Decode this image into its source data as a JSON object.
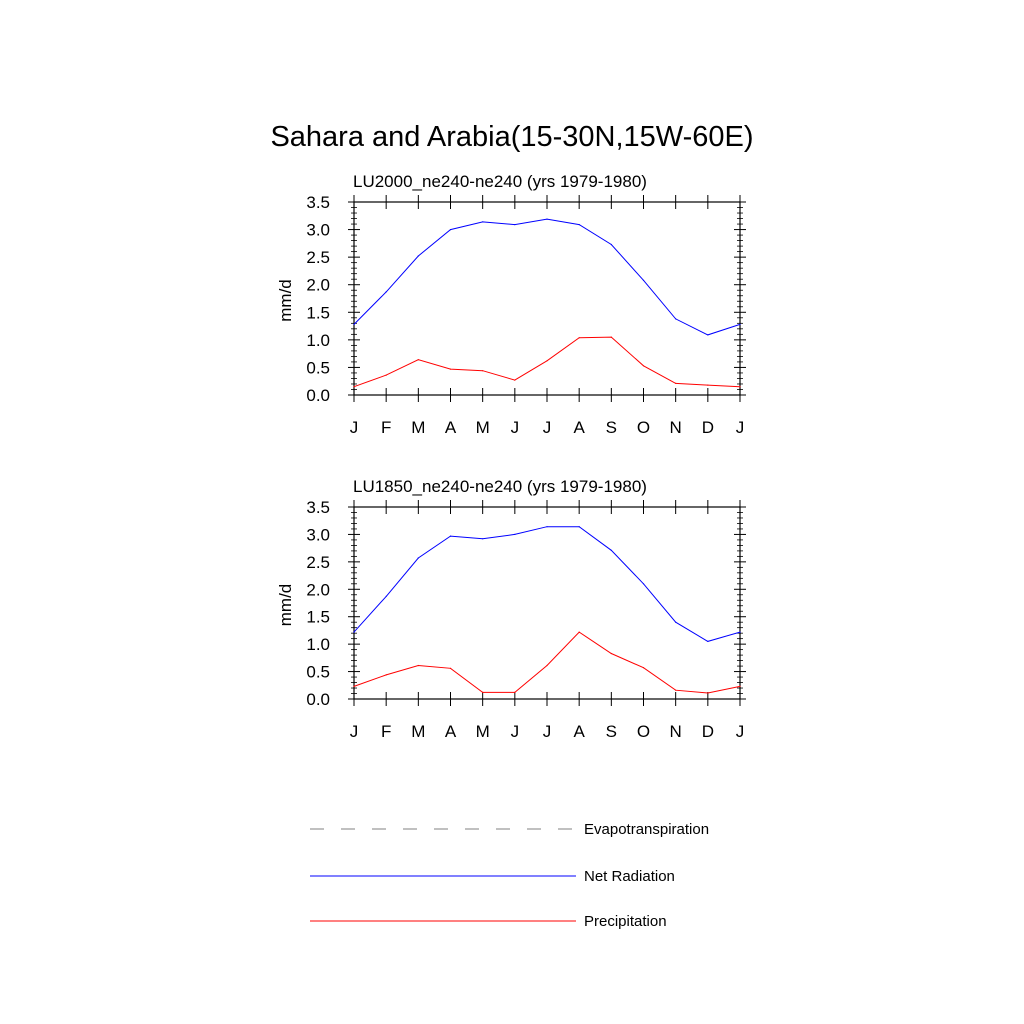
{
  "title": "Sahara and Arabia(15-30N,15W-60E)",
  "month_labels": [
    "J",
    "F",
    "M",
    "A",
    "M",
    "J",
    "J",
    "A",
    "S",
    "O",
    "N",
    "D",
    "J"
  ],
  "chart_data": [
    {
      "type": "line",
      "title": "LU2000_ne240-ne240 (yrs 1979-1980)",
      "ylabel": "mm/d",
      "xlabel": "",
      "categories": [
        "J",
        "F",
        "M",
        "A",
        "M",
        "J",
        "J",
        "A",
        "S",
        "O",
        "N",
        "D",
        "J"
      ],
      "ylim": [
        0.0,
        3.5
      ],
      "yticks": [
        "0.0",
        "0.5",
        "1.0",
        "1.5",
        "2.0",
        "2.5",
        "3.0",
        "3.5"
      ],
      "series": [
        {
          "name": "Net Radiation",
          "color": "#0000ff",
          "style": "solid",
          "values": [
            1.28,
            1.87,
            2.52,
            3.0,
            3.14,
            3.09,
            3.19,
            3.09,
            2.73,
            2.08,
            1.38,
            1.09,
            1.28
          ]
        },
        {
          "name": "Precipitation",
          "color": "#ff0000",
          "style": "solid",
          "values": [
            0.15,
            0.36,
            0.64,
            0.47,
            0.44,
            0.27,
            0.62,
            1.04,
            1.05,
            0.53,
            0.21,
            0.18,
            0.15
          ]
        }
      ]
    },
    {
      "type": "line",
      "title": "LU1850_ne240-ne240 (yrs 1979-1980)",
      "ylabel": "mm/d",
      "xlabel": "",
      "categories": [
        "J",
        "F",
        "M",
        "A",
        "M",
        "J",
        "J",
        "A",
        "S",
        "O",
        "N",
        "D",
        "J"
      ],
      "ylim": [
        0.0,
        3.5
      ],
      "yticks": [
        "0.0",
        "0.5",
        "1.0",
        "1.5",
        "2.0",
        "2.5",
        "3.0",
        "3.5"
      ],
      "series": [
        {
          "name": "Net Radiation",
          "color": "#0000ff",
          "style": "solid",
          "values": [
            1.22,
            1.87,
            2.57,
            2.97,
            2.92,
            3.0,
            3.14,
            3.14,
            2.71,
            2.1,
            1.4,
            1.05,
            1.22
          ]
        },
        {
          "name": "Precipitation",
          "color": "#ff0000",
          "style": "solid",
          "values": [
            0.23,
            0.44,
            0.61,
            0.56,
            0.12,
            0.12,
            0.61,
            1.22,
            0.83,
            0.57,
            0.16,
            0.11,
            0.23
          ]
        }
      ]
    }
  ],
  "legend": {
    "placement": "bottom",
    "items": [
      {
        "label": "Evapotranspiration",
        "color": "#808080",
        "style": "dashed"
      },
      {
        "label": "Net Radiation",
        "color": "#0000ff",
        "style": "solid"
      },
      {
        "label": "Precipitation",
        "color": "#ff0000",
        "style": "solid"
      }
    ]
  }
}
